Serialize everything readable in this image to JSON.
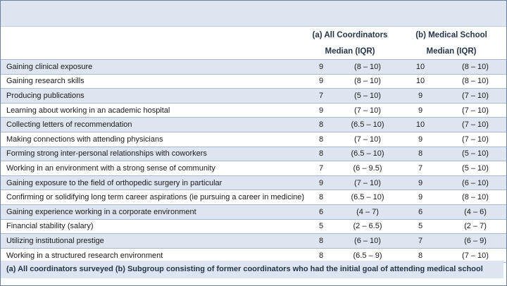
{
  "header": {
    "group_a": "(a) All Coordinators",
    "group_b": "(b) Medical School",
    "median_a": "Median (IQR)",
    "median_b": "Median (IQR)"
  },
  "rows": [
    {
      "label": "Gaining clinical exposure",
      "a_median": "9",
      "a_iqr": "(8 – 10)",
      "b_median": "10",
      "b_iqr": "(8 – 10)"
    },
    {
      "label": "Gaining research skills",
      "a_median": "9",
      "a_iqr": "(8 – 10)",
      "b_median": "10",
      "b_iqr": "(8 – 10)"
    },
    {
      "label": "Producing publications",
      "a_median": "7",
      "a_iqr": "(5 – 10)",
      "b_median": "9",
      "b_iqr": "(7 – 10)"
    },
    {
      "label": "Learning about working in an academic hospital",
      "a_median": "9",
      "a_iqr": "(7 – 10)",
      "b_median": "9",
      "b_iqr": "(7 – 10)"
    },
    {
      "label": "Collecting letters of recommendation",
      "a_median": "8",
      "a_iqr": "(6.5 – 10)",
      "b_median": "10",
      "b_iqr": "(7 – 10)"
    },
    {
      "label": "Making connections with attending physicians",
      "a_median": "8",
      "a_iqr": "(7 – 10)",
      "b_median": "9",
      "b_iqr": "(7 – 10)"
    },
    {
      "label": "Forming strong inter-personal relationships with coworkers",
      "a_median": "8",
      "a_iqr": "(6.5 – 10)",
      "b_median": "8",
      "b_iqr": "(5 – 10)"
    },
    {
      "label": "Working in an environment with a strong sense of community",
      "a_median": "7",
      "a_iqr": "(6 – 9.5)",
      "b_median": "7",
      "b_iqr": "(5 – 10)"
    },
    {
      "label": "Gaining exposure to the field of orthopedic surgery in particular",
      "a_median": "9",
      "a_iqr": "(7 – 10)",
      "b_median": "9",
      "b_iqr": "(6 – 10)"
    },
    {
      "label": "Confirming or solidifying long term career aspirations (ie pursuing a career in medicine)",
      "a_median": "8",
      "a_iqr": "(6.5 – 10)",
      "b_median": "9",
      "b_iqr": "(8 – 10)"
    },
    {
      "label": "Gaining experience working in a corporate environment",
      "a_median": "6",
      "a_iqr": "(4 – 7)",
      "b_median": "6",
      "b_iqr": "(4 – 6)"
    },
    {
      "label": "Financial stability (salary)",
      "a_median": "5",
      "a_iqr": "(2 – 6.5)",
      "b_median": "5",
      "b_iqr": "(2 – 7)"
    },
    {
      "label": "Utilizing institutional prestige",
      "a_median": "8",
      "a_iqr": "(6 – 10)",
      "b_median": "7",
      "b_iqr": "(6 – 9)"
    },
    {
      "label": "Working in a structured research environment",
      "a_median": "8",
      "a_iqr": "(6.5 – 9)",
      "b_median": "8",
      "b_iqr": "(7 – 10)"
    }
  ],
  "footnote": "(a) All coordinators surveyed (b) Subgroup consisting of former coordinators who had the initial goal of attending medical school"
}
